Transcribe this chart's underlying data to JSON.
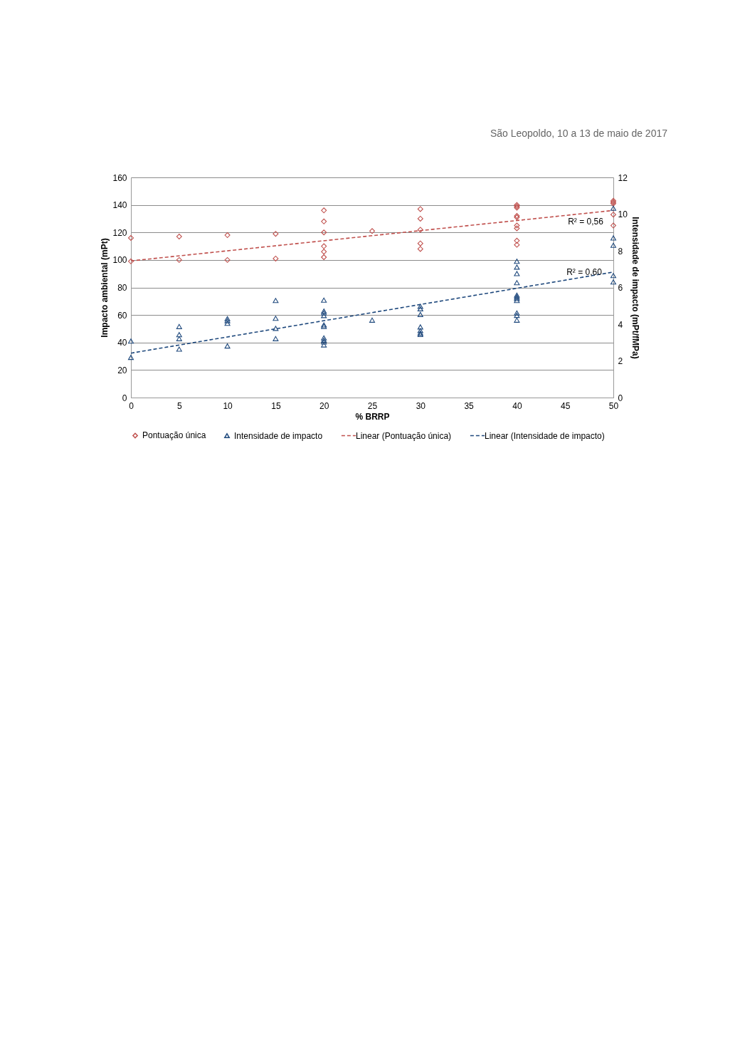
{
  "chart_data": {
    "type": "scatter",
    "xlabel": "% BRRP",
    "ylabel": "Impacto ambiental (mPt)",
    "y2label": "Intensidade de impacto (mPt/fMPa)",
    "annotations": [
      "São Leopoldo, 10 a 13 de maio de 2017",
      "R² = 0,56",
      "R² = 0,60"
    ],
    "xlim": [
      0,
      50
    ],
    "xticks": [
      0,
      5,
      10,
      15,
      20,
      25,
      30,
      35,
      40,
      45,
      50
    ],
    "ylim": [
      0,
      160
    ],
    "yticks": [
      0,
      20,
      40,
      60,
      80,
      100,
      120,
      140,
      160
    ],
    "y2lim": [
      0,
      12
    ],
    "y2ticks": [
      0,
      2,
      4,
      6,
      8,
      10,
      12
    ],
    "grid": "y",
    "legend": "bottom",
    "series": [
      {
        "name": "Pontuação única",
        "marker": "diamond",
        "color": "#c0504d",
        "x": [
          0,
          0,
          5,
          5,
          10,
          10,
          15,
          15,
          20,
          20,
          20,
          20,
          20,
          20,
          25,
          30,
          30,
          30,
          30,
          30,
          40,
          40,
          40,
          40,
          40,
          40,
          40,
          40,
          40,
          50,
          50,
          50,
          50,
          50
        ],
        "values": [
          116,
          99,
          117,
          100,
          118,
          100,
          119,
          101,
          136,
          128,
          120,
          110,
          106,
          102,
          121,
          137,
          130,
          122,
          112,
          108,
          140,
          139,
          138,
          132,
          131,
          125,
          123,
          114,
          111,
          143,
          142,
          141,
          133,
          125
        ]
      },
      {
        "name": "Intensidade de impacto",
        "marker": "triangle",
        "axis": "y2",
        "color": "#1f497d",
        "x": [
          0,
          0,
          5,
          5,
          5,
          5,
          10,
          10,
          10,
          10,
          15,
          15,
          15,
          15,
          20,
          20,
          20,
          20,
          20,
          20,
          20,
          20,
          20,
          20,
          25,
          30,
          30,
          30,
          30,
          30,
          30,
          30,
          40,
          40,
          40,
          40,
          40,
          40,
          40,
          40,
          40,
          40,
          40,
          50,
          50,
          50,
          50,
          50
        ],
        "values": [
          3.08,
          2.19,
          3.87,
          3.43,
          3.21,
          2.64,
          4.3,
          4.19,
          4.05,
          2.81,
          5.29,
          4.32,
          3.77,
          3.21,
          5.31,
          4.71,
          4.61,
          4.47,
          3.96,
          3.88,
          3.25,
          3.13,
          3.03,
          2.87,
          4.22,
          4.97,
          4.84,
          4.53,
          3.85,
          3.65,
          3.52,
          3.44,
          7.43,
          7.11,
          6.76,
          6.26,
          5.58,
          5.49,
          5.4,
          5.29,
          4.61,
          4.48,
          4.22,
          10.32,
          8.7,
          8.3,
          6.65,
          6.3
        ]
      },
      {
        "name": "Linear (Pontuação única)",
        "type": "line",
        "line_style": "dashed",
        "color": "#c0504d",
        "x": [
          0,
          50
        ],
        "values": [
          99.3,
          136
        ]
      },
      {
        "name": "Linear (Intensidade de impacto)",
        "type": "line",
        "line_style": "dashed",
        "axis": "y2",
        "color": "#1f497d",
        "x": [
          0,
          50
        ],
        "values": [
          2.42,
          6.84
        ]
      }
    ]
  }
}
